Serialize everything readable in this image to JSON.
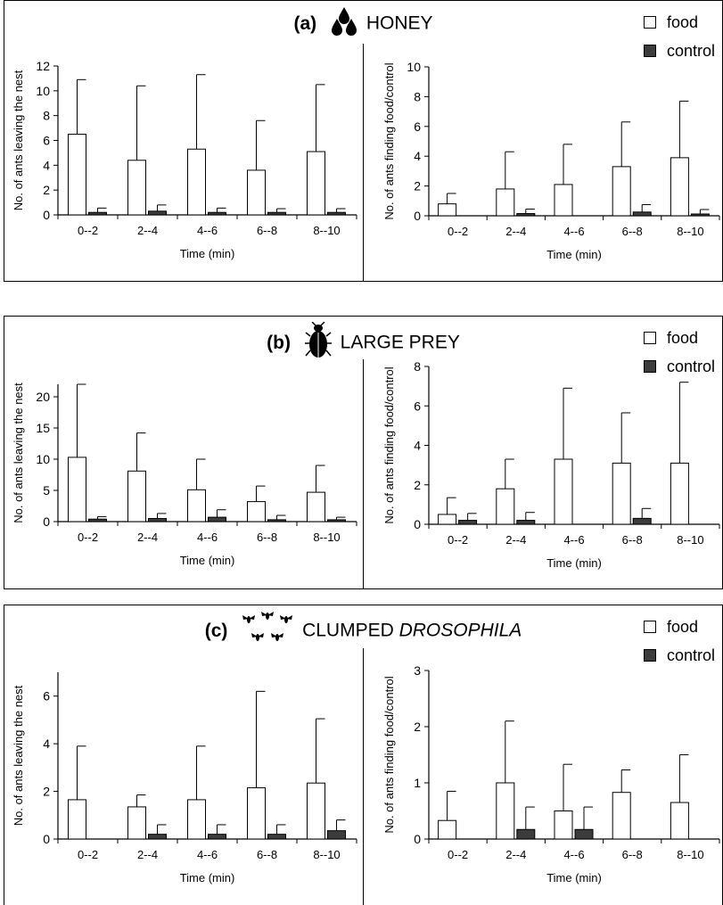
{
  "legend": {
    "food": "food",
    "control": "control"
  },
  "colors": {
    "food": "#ffffff",
    "control": "#3c3c3c",
    "axis": "#000000"
  },
  "panels": [
    {
      "label": "(a)",
      "title": "HONEY",
      "title_italic": "",
      "icon": "honey-drops-icon",
      "charts": [
        {
          "type": "bar",
          "ylabel": "No. of ants leaving the nest",
          "xlabel": "Time (min)",
          "categories": [
            "0--2",
            "2--4",
            "4--6",
            "6--8",
            "8--10"
          ],
          "ylim": [
            0,
            12
          ],
          "yticks": [
            0,
            2,
            4,
            6,
            8,
            10,
            12
          ],
          "series": [
            {
              "name": "food",
              "values": [
                6.5,
                4.4,
                5.3,
                3.6,
                5.1
              ],
              "errors": [
                4.4,
                6.0,
                6.0,
                4.0,
                5.4
              ]
            },
            {
              "name": "control",
              "values": [
                0.2,
                0.3,
                0.2,
                0.2,
                0.2
              ],
              "errors": [
                0.35,
                0.5,
                0.35,
                0.3,
                0.3
              ]
            }
          ]
        },
        {
          "type": "bar",
          "ylabel": "No. of ants finding food/control",
          "xlabel": "Time (min)",
          "categories": [
            "0--2",
            "2--4",
            "4--6",
            "6--8",
            "8--10"
          ],
          "ylim": [
            0,
            10
          ],
          "yticks": [
            0,
            2,
            4,
            6,
            8,
            10
          ],
          "series": [
            {
              "name": "food",
              "values": [
                0.8,
                1.8,
                2.1,
                3.3,
                3.9
              ],
              "errors": [
                0.7,
                2.5,
                2.7,
                3.0,
                3.8
              ]
            },
            {
              "name": "control",
              "values": [
                0,
                0.15,
                0,
                0.25,
                0.12
              ],
              "errors": [
                0,
                0.3,
                0,
                0.5,
                0.3
              ]
            }
          ]
        }
      ]
    },
    {
      "label": "(b)",
      "title": "LARGE PREY",
      "title_italic": "",
      "icon": "beetle-icon",
      "charts": [
        {
          "type": "bar",
          "ylabel": "No. of ants leaving the nest",
          "xlabel": "Time (min)",
          "categories": [
            "0--2",
            "2--4",
            "4--6",
            "6--8",
            "8--10"
          ],
          "ylim": [
            0,
            22
          ],
          "yticks": [
            0,
            5,
            10,
            15,
            20
          ],
          "series": [
            {
              "name": "food",
              "values": [
                10.3,
                8.1,
                5.1,
                3.2,
                4.7
              ],
              "errors": [
                11.7,
                6.1,
                4.9,
                2.5,
                4.3
              ]
            },
            {
              "name": "control",
              "values": [
                0.4,
                0.5,
                0.7,
                0.3,
                0.3
              ],
              "errors": [
                0.4,
                0.8,
                1.2,
                0.7,
                0.4
              ]
            }
          ]
        },
        {
          "type": "bar",
          "ylabel": "No. of ants finding food/control",
          "xlabel": "Time (min)",
          "categories": [
            "0--2",
            "2--4",
            "4--6",
            "6--8",
            "8--10"
          ],
          "ylim": [
            0,
            8
          ],
          "yticks": [
            0,
            2,
            4,
            6,
            8
          ],
          "series": [
            {
              "name": "food",
              "values": [
                0.5,
                1.8,
                3.3,
                3.1,
                3.1
              ],
              "errors": [
                0.85,
                1.5,
                3.6,
                2.55,
                4.1
              ]
            },
            {
              "name": "control",
              "values": [
                0.2,
                0.2,
                0,
                0.3,
                0
              ],
              "errors": [
                0.35,
                0.4,
                0,
                0.5,
                0
              ]
            }
          ]
        }
      ]
    },
    {
      "label": "(c)",
      "title": "CLUMPED ",
      "title_italic": "DROSOPHILA",
      "icon": "flies-icon",
      "charts": [
        {
          "type": "bar",
          "ylabel": "No. of ants leaving the nest",
          "xlabel": "Time (min)",
          "categories": [
            "0--2",
            "2--4",
            "4--6",
            "6--8",
            "8--10"
          ],
          "ylim": [
            0,
            7
          ],
          "yticks": [
            0,
            2,
            4,
            6
          ],
          "series": [
            {
              "name": "food",
              "values": [
                1.65,
                1.35,
                1.65,
                2.15,
                2.35
              ],
              "errors": [
                2.25,
                0.5,
                2.25,
                4.05,
                2.7
              ]
            },
            {
              "name": "control",
              "values": [
                0,
                0.2,
                0.2,
                0.2,
                0.35
              ],
              "errors": [
                0,
                0.4,
                0.4,
                0.4,
                0.45
              ]
            }
          ]
        },
        {
          "type": "bar",
          "ylabel": "No. of ants finding food/control",
          "xlabel": "Time (min)",
          "categories": [
            "0--2",
            "2--4",
            "4--6",
            "6--8",
            "8--10"
          ],
          "ylim": [
            0,
            3
          ],
          "yticks": [
            0,
            1,
            2,
            3
          ],
          "series": [
            {
              "name": "food",
              "values": [
                0.33,
                1.0,
                0.5,
                0.83,
                0.65
              ],
              "errors": [
                0.52,
                1.1,
                0.83,
                0.4,
                0.85
              ]
            },
            {
              "name": "control",
              "values": [
                0,
                0.17,
                0.17,
                0,
                0
              ],
              "errors": [
                0,
                0.4,
                0.4,
                0,
                0
              ]
            }
          ]
        }
      ]
    }
  ]
}
